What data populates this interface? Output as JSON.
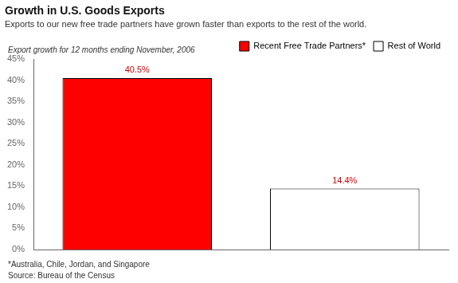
{
  "chart_data": {
    "type": "bar",
    "title": "Growth in U.S. Goods Exports",
    "subtitle": "Exports to our new free trade partners have grown faster than exports to the rest of the world.",
    "ylabel": "Export growth for 12 months ending November, 2006",
    "categories": [
      "Recent Free Trade Partners*",
      "Rest of World"
    ],
    "values": [
      40.5,
      14.4
    ],
    "value_labels": [
      "40.5%",
      "14.4%"
    ],
    "data_labels": true,
    "colors": [
      "#ff0000",
      "#ffffff"
    ],
    "ylim": [
      0,
      45
    ],
    "yticks": [
      {
        "value": 0,
        "label": "0%"
      },
      {
        "value": 5,
        "label": "5%"
      },
      {
        "value": 10,
        "label": "10%"
      },
      {
        "value": 15,
        "label": "15%"
      },
      {
        "value": 20,
        "label": "20%"
      },
      {
        "value": 25,
        "label": "25%"
      },
      {
        "value": 30,
        "label": "30%"
      },
      {
        "value": 35,
        "label": "35%"
      },
      {
        "value": 40,
        "label": "40%"
      },
      {
        "value": 45,
        "label": "45%"
      }
    ],
    "grid": false,
    "legend": "upper right",
    "tick_labels": "y",
    "annotations": [
      "*Australia, Chile, Jordan, and Singapore",
      "Source: Bureau of the Census"
    ]
  }
}
